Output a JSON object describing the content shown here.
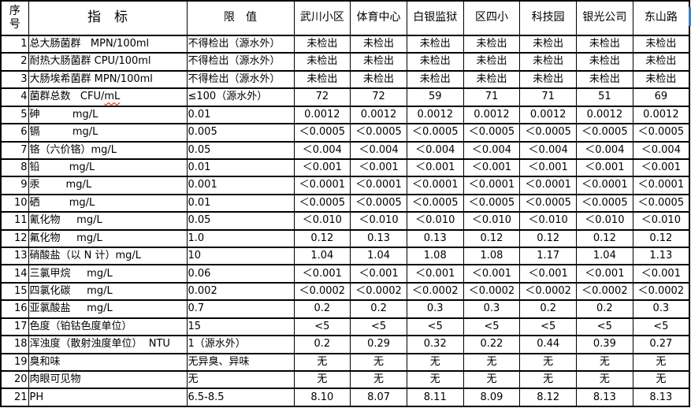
{
  "header": {
    "seq_line1": "序",
    "seq_line2": "号",
    "indicator": "指　标",
    "limit": "限　值",
    "sites": [
      "武川小区",
      "体育中心",
      "白银监狱",
      "区四小",
      "科技园",
      "银光公司",
      "东山路"
    ]
  },
  "rows": [
    {
      "no": "1",
      "label": "总大肠菌群   MPN/100ml",
      "limit": "不得检出（源水外）",
      "values": [
        "未检出",
        "未检出",
        "未检出",
        "未检出",
        "未检出",
        "未检出",
        "未检出"
      ]
    },
    {
      "no": "2",
      "label": "耐热大肠菌群 CPU/100ml",
      "limit": "不得检出（源水外）",
      "values": [
        "未检出",
        "未检出",
        "未检出",
        "未检出",
        "未检出",
        "未检出",
        "未检出"
      ]
    },
    {
      "no": "3",
      "label": "大肠埃希菌群 MPN/100ml",
      "limit": "不得检出（源水外）",
      "values": [
        "未检出",
        "未检出",
        "未检出",
        "未检出",
        "未检出",
        "未检出",
        "未检出"
      ]
    },
    {
      "no": "4",
      "label": "菌群总数   CFU/",
      "label_wavy": "mL",
      "limit": "≤100（源水外）",
      "values": [
        "72",
        "72",
        "59",
        "71",
        "71",
        "51",
        "69"
      ]
    },
    {
      "no": "5",
      "label": "砷          mg/L",
      "limit": "0.01",
      "values": [
        "0.0012",
        "0.0012",
        "0.0012",
        "0.0012",
        "0.0012",
        "0.0012",
        "0.0012"
      ]
    },
    {
      "no": "6",
      "label": "镉          mg/L",
      "limit": "0.005",
      "values": [
        "＜0.0005",
        "＜0.0005",
        "＜0.0005",
        "＜0.0005",
        "＜0.0005",
        "＜0.0005",
        "＜0.0005"
      ]
    },
    {
      "no": "7",
      "label": "铬（六价铬）mg/L",
      "limit": "0.05",
      "values": [
        "＜0.004",
        "＜0.004",
        "＜0.004",
        "＜0.004",
        "＜0.004",
        "＜0.004",
        "＜0.004"
      ]
    },
    {
      "no": "8",
      "label": "铅         mg/L",
      "limit": "0.01",
      "values": [
        "＜0.001",
        "＜0.001",
        "＜0.001",
        "＜0.001",
        "＜0.001",
        "＜0.001",
        "＜0.001"
      ]
    },
    {
      "no": "9",
      "label": "汞        mg/L",
      "limit": "0.001",
      "values": [
        "＜0.0001",
        "＜0.0001",
        "＜0.0001",
        "＜0.0001",
        "＜0.0001",
        "＜0.0001",
        "＜0.0001"
      ]
    },
    {
      "no": "10",
      "label": "硒         mg/L",
      "limit": "0.01",
      "values": [
        "＜0.0005",
        "＜0.0005",
        "＜0.0005",
        "＜0.0005",
        "＜0.0005",
        "＜0.0005",
        "＜0.0005"
      ]
    },
    {
      "no": "11",
      "label": "氰化物     mg/L",
      "limit": "0.05",
      "values": [
        "＜0.010",
        "＜0.010",
        "＜0.010",
        "＜0.010",
        "＜0.010",
        "＜0.010",
        "＜0.010"
      ]
    },
    {
      "no": "12",
      "label": "氟化物     mg/L",
      "limit": "1.0",
      "values": [
        "0.12",
        "0.13",
        "0.13",
        "0.12",
        "0.12",
        "0.12",
        "0.12"
      ]
    },
    {
      "no": "13",
      "label": "硝酸盐（以 N 计）mg/L",
      "limit": "10",
      "values": [
        "1.04",
        "1.04",
        "1.08",
        "1.08",
        "1.17",
        "1.04",
        "1.13"
      ]
    },
    {
      "no": "14",
      "label": "三氯甲烷     mg/L",
      "limit": "0.06",
      "values": [
        "＜0.001",
        "＜0.001",
        "＜0.001",
        "＜0.001",
        "＜0.001",
        "＜0.001",
        "＜0.001"
      ]
    },
    {
      "no": "15",
      "label": "四氯化碳     mg/L",
      "limit": "0.002",
      "values": [
        "＜0.0002",
        "＜0.0002",
        "＜0.0002",
        "＜0.0002",
        "＜0.0002",
        "＜0.0002",
        "＜0.0002"
      ]
    },
    {
      "no": "16",
      "label": "亚氯酸盐     mg/L",
      "limit": "0.7",
      "values": [
        "0.2",
        "0.2",
        "0.3",
        "0.3",
        "0.2",
        "0.2",
        "0.3"
      ]
    },
    {
      "no": "17",
      "label": "色度（铂钴色度单位）",
      "limit": "15",
      "values": [
        "<5",
        "<5",
        "<5",
        "<5",
        "<5",
        "<5",
        "<5"
      ]
    },
    {
      "no": "18",
      "label": "浑浊度（散射浊度单位）  NTU",
      "limit": "1（源水外）",
      "values": [
        "0.2",
        "0.29",
        "0.32",
        "0.22",
        "0.44",
        "0.39",
        "0.27"
      ]
    },
    {
      "no": "19",
      "label": "臭和味",
      "limit": "无异臭、异味",
      "values": [
        "无",
        "无",
        "无",
        "无",
        "无",
        "无",
        "无"
      ]
    },
    {
      "no": "20",
      "label": "肉眼可见物",
      "limit": "无",
      "values": [
        "无",
        "无",
        "无",
        "无",
        "无",
        "无",
        "无"
      ]
    },
    {
      "no": "21",
      "label": "PH",
      "limit": "6.5-8.5",
      "values": [
        "8.10",
        "8.07",
        "8.11",
        "8.09",
        "8.12",
        "8.13",
        "8.13"
      ]
    }
  ],
  "annotations": {
    "spellcheck_color": "#ff0000",
    "handle_color": "#3e7fc1"
  }
}
